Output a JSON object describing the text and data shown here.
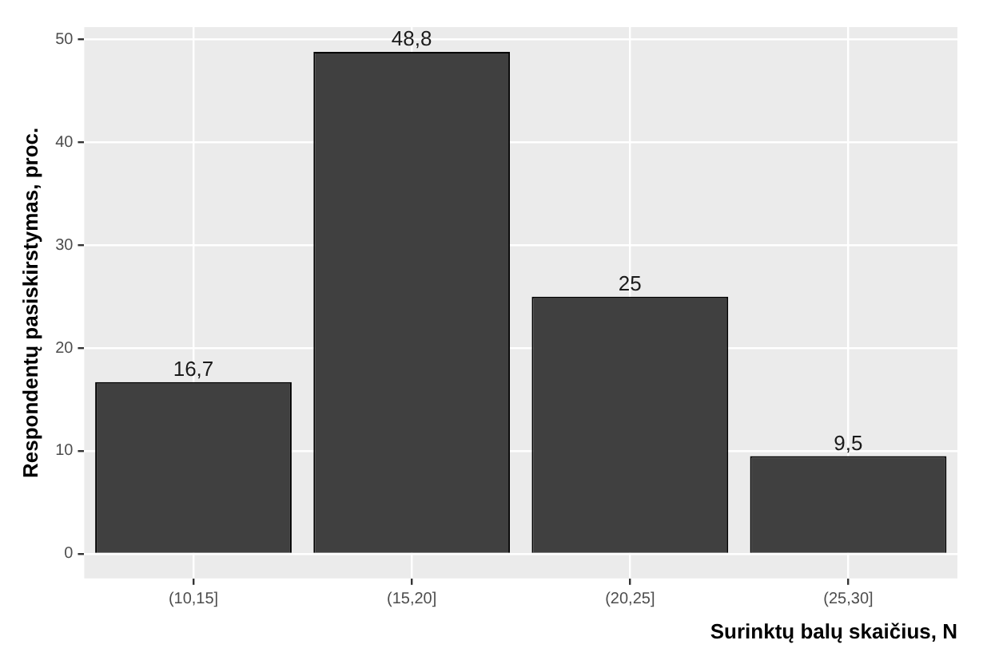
{
  "chart_data": {
    "type": "bar",
    "xlabel": "Surinktų balų skaičius, N",
    "ylabel": "Respondentų pasiskirstymas, proc.",
    "categories": [
      "(10,15]",
      "(15,20]",
      "(20,25]",
      "(25,30]"
    ],
    "values": [
      16.7,
      48.8,
      25,
      9.5
    ],
    "value_labels": [
      "16,7",
      "48,8",
      "25",
      "9,5"
    ],
    "color": "#404040",
    "ylim": [
      -2.4,
      51.2
    ],
    "yticks": [
      0,
      10,
      20,
      30,
      40,
      50
    ],
    "grid": true
  }
}
